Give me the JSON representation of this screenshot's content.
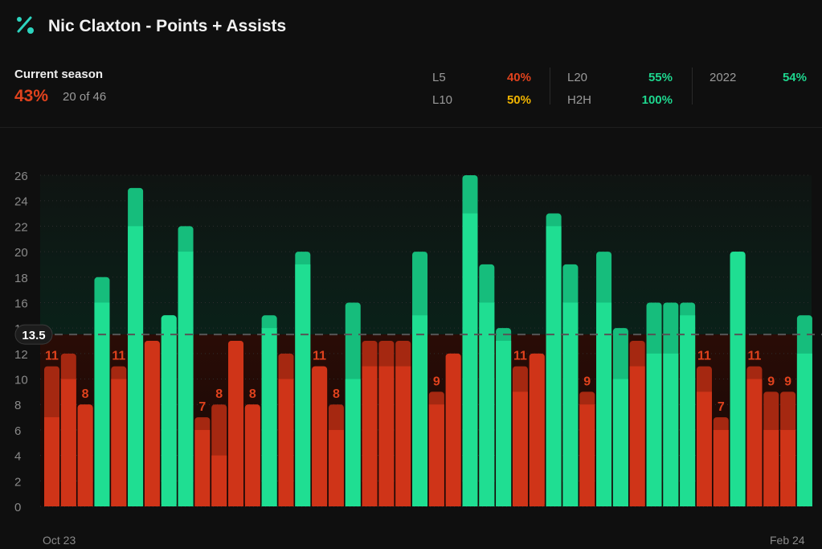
{
  "header": {
    "title": "Nic Claxton - Points + Assists",
    "icon": "percent-icon"
  },
  "season": {
    "label": "Current season",
    "pct": "43%",
    "count": "20 of 46"
  },
  "splits": [
    {
      "label": "L5",
      "value": "40%",
      "color": "#e0421d"
    },
    {
      "label": "L10",
      "value": "50%",
      "color": "#f0b400"
    },
    {
      "label": "L20",
      "value": "55%",
      "color": "#1ed68e"
    },
    {
      "label": "H2H",
      "value": "100%",
      "color": "#1ed68e"
    },
    {
      "label": "2022",
      "value": "54%",
      "color": "#1ed68e"
    }
  ],
  "colors": {
    "over": "#1fde92",
    "over_top": "#16bd7c",
    "under": "#cf3418",
    "under_top": "#a52811"
  },
  "chart_data": {
    "type": "bar",
    "title": "Nic Claxton - Points + Assists",
    "line": 13.5,
    "ylim": [
      0,
      26
    ],
    "yticks": [
      0,
      2,
      4,
      6,
      8,
      10,
      12,
      14,
      16,
      18,
      20,
      22,
      24,
      26
    ],
    "x_start_label": "Oct 23",
    "x_end_label": "Feb 24",
    "series": [
      {
        "name": "Points",
        "values": [
          7,
          10,
          8,
          16,
          10,
          22,
          13,
          15,
          20,
          6,
          4,
          13,
          8,
          14,
          10,
          19,
          11,
          6,
          10,
          11,
          11,
          11,
          15,
          8,
          12,
          23,
          16,
          13,
          9,
          12,
          22,
          16,
          8,
          16,
          10,
          11,
          12,
          12,
          15,
          9,
          6,
          20,
          10,
          6,
          6,
          12
        ]
      },
      {
        "name": "Assists",
        "values": [
          4,
          2,
          0,
          2,
          1,
          3,
          0,
          0,
          2,
          1,
          4,
          0,
          0,
          1,
          2,
          1,
          0,
          2,
          6,
          2,
          2,
          2,
          5,
          1,
          0,
          3,
          3,
          1,
          2,
          0,
          1,
          3,
          1,
          4,
          4,
          2,
          4,
          4,
          1,
          2,
          1,
          0,
          1,
          3,
          3,
          3
        ]
      }
    ],
    "totals": [
      11,
      12,
      8,
      18,
      11,
      25,
      13,
      15,
      22,
      7,
      8,
      13,
      8,
      15,
      12,
      20,
      11,
      8,
      16,
      13,
      13,
      13,
      20,
      9,
      12,
      26,
      19,
      14,
      11,
      12,
      23,
      19,
      9,
      20,
      14,
      13,
      16,
      16,
      16,
      11,
      7,
      20,
      11,
      9,
      9,
      15
    ],
    "labels": [
      "11",
      "",
      "8",
      "",
      "11",
      "",
      "",
      "",
      "",
      "7",
      "8",
      "",
      "8",
      "",
      "",
      "",
      "11",
      "8",
      "",
      "",
      "",
      "",
      "",
      "9",
      "",
      "",
      "",
      "",
      "11",
      "",
      "",
      "",
      "9",
      "",
      "",
      "",
      "",
      "",
      "",
      "11",
      "7",
      "",
      "11",
      "9",
      "9",
      ""
    ]
  }
}
